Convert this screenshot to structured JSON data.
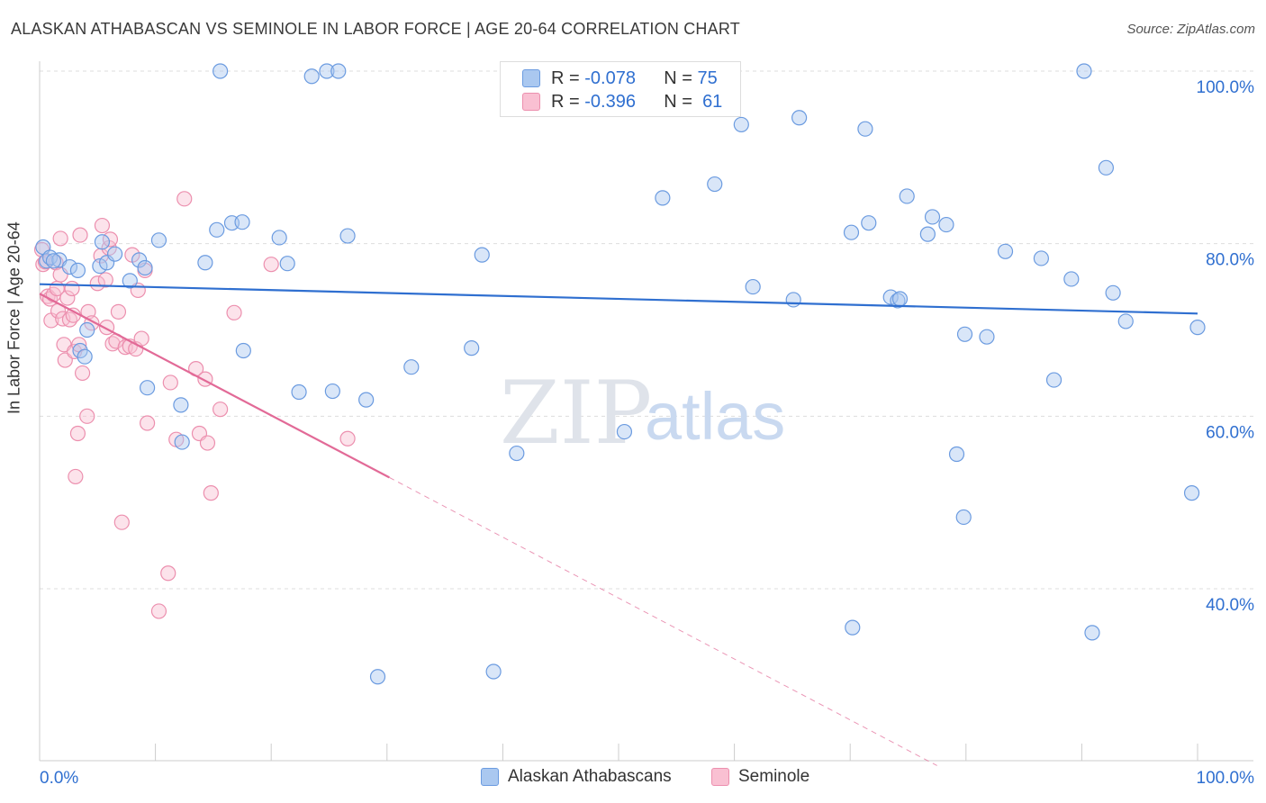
{
  "title": "ALASKAN ATHABASCAN VS SEMINOLE IN LABOR FORCE | AGE 20-64 CORRELATION CHART",
  "source": "Source: ZipAtlas.com",
  "watermark": {
    "zip": "ZIP",
    "atlas": "atlas"
  },
  "legend": {
    "rows": [
      {
        "r_label": "R =",
        "r_value": "-0.078",
        "n_label": "N =",
        "n_value": "75",
        "color": "#aac8f0",
        "border": "#6b9be0"
      },
      {
        "r_label": "R =",
        "r_value": "-0.396",
        "n_label": "N =",
        "n_value": "61",
        "color": "#f9c0d2",
        "border": "#ec8fae"
      }
    ]
  },
  "bottom_legend": {
    "series1": "Alaskan Athabascans",
    "series2": "Seminole"
  },
  "colors": {
    "blue": "#2f6fd0",
    "pink": "#e26a97",
    "grid": "#dddddd",
    "axis_text": "#2f6fd0"
  },
  "chart_data": {
    "type": "scatter",
    "title": "ALASKAN ATHABASCAN VS SEMINOLE IN LABOR FORCE | AGE 20-64 CORRELATION CHART",
    "xlabel": "",
    "ylabel": "In Labor Force | Age 20-64",
    "xlim": [
      0,
      100
    ],
    "ylim": [
      20,
      102
    ],
    "x_tick_labels": [
      "0.0%",
      "100.0%"
    ],
    "y_ticks": [
      40,
      60,
      80,
      100
    ],
    "y_tick_labels": [
      "40.0%",
      "60.0%",
      "80.0%",
      "100.0%"
    ],
    "grid": true,
    "legend_position": "top-center",
    "series": [
      {
        "name": "Alaskan Athabascans",
        "r": -0.078,
        "n": 75,
        "trend": {
          "x": [
            0,
            100
          ],
          "y": [
            75.3,
            71.9
          ]
        },
        "points": [
          [
            0.3,
            79.6
          ],
          [
            0.6,
            78.0
          ],
          [
            0.9,
            78.4
          ],
          [
            1.7,
            78.1
          ],
          [
            2.6,
            77.3
          ],
          [
            3.5,
            67.6
          ],
          [
            3.9,
            66.9
          ],
          [
            4.1,
            70.0
          ],
          [
            5.2,
            77.4
          ],
          [
            5.4,
            80.2
          ],
          [
            5.8,
            77.8
          ],
          [
            6.5,
            78.8
          ],
          [
            7.8,
            75.7
          ],
          [
            8.6,
            78.1
          ],
          [
            9.1,
            77.2
          ],
          [
            9.3,
            63.3
          ],
          [
            10.3,
            80.4
          ],
          [
            12.2,
            61.3
          ],
          [
            12.3,
            57.0
          ],
          [
            14.3,
            77.8
          ],
          [
            15.3,
            81.6
          ],
          [
            15.6,
            100.0
          ],
          [
            16.6,
            82.4
          ],
          [
            17.5,
            82.5
          ],
          [
            17.6,
            67.6
          ],
          [
            20.7,
            80.7
          ],
          [
            21.4,
            77.7
          ],
          [
            22.4,
            62.8
          ],
          [
            23.5,
            99.4
          ],
          [
            24.8,
            100.0
          ],
          [
            25.3,
            62.9
          ],
          [
            25.8,
            100.0
          ],
          [
            26.6,
            80.9
          ],
          [
            28.2,
            61.9
          ],
          [
            29.2,
            29.8
          ],
          [
            32.1,
            65.7
          ],
          [
            37.3,
            67.9
          ],
          [
            38.2,
            78.7
          ],
          [
            39.2,
            30.4
          ],
          [
            41.2,
            55.7
          ],
          [
            50.5,
            58.2
          ],
          [
            53.8,
            85.3
          ],
          [
            58.3,
            86.9
          ],
          [
            60.6,
            93.8
          ],
          [
            61.6,
            75.0
          ],
          [
            65.1,
            73.5
          ],
          [
            65.6,
            94.6
          ],
          [
            70.1,
            81.3
          ],
          [
            70.2,
            35.5
          ],
          [
            71.3,
            93.3
          ],
          [
            71.6,
            82.4
          ],
          [
            73.5,
            73.8
          ],
          [
            74.1,
            73.4
          ],
          [
            74.3,
            73.6
          ],
          [
            74.9,
            85.5
          ],
          [
            76.7,
            81.1
          ],
          [
            77.1,
            83.1
          ],
          [
            78.3,
            82.2
          ],
          [
            79.2,
            55.6
          ],
          [
            79.8,
            48.3
          ],
          [
            79.9,
            69.5
          ],
          [
            81.8,
            69.2
          ],
          [
            83.4,
            79.1
          ],
          [
            86.5,
            78.3
          ],
          [
            87.6,
            64.2
          ],
          [
            89.1,
            75.9
          ],
          [
            90.2,
            100.0
          ],
          [
            90.9,
            34.9
          ],
          [
            92.1,
            88.8
          ],
          [
            92.7,
            74.3
          ],
          [
            93.8,
            71.0
          ],
          [
            99.5,
            51.1
          ],
          [
            100.0,
            70.3
          ],
          [
            1.2,
            78.0
          ],
          [
            3.3,
            76.9
          ]
        ]
      },
      {
        "name": "Seminole",
        "r": -0.396,
        "n": 61,
        "trend": {
          "x": [
            0,
            30.2
          ],
          "y": [
            74.2,
            52.9
          ]
        },
        "trend_ext": {
          "x": [
            30.2,
            77.5
          ],
          "y": [
            52.9,
            19.5
          ]
        },
        "points": [
          [
            0.2,
            79.3
          ],
          [
            0.3,
            77.6
          ],
          [
            0.5,
            77.9
          ],
          [
            0.7,
            73.9
          ],
          [
            0.9,
            73.6
          ],
          [
            1.0,
            71.1
          ],
          [
            1.2,
            74.1
          ],
          [
            1.4,
            77.8
          ],
          [
            1.5,
            74.8
          ],
          [
            1.6,
            72.2
          ],
          [
            1.8,
            76.4
          ],
          [
            1.8,
            80.6
          ],
          [
            2.0,
            71.3
          ],
          [
            2.1,
            68.3
          ],
          [
            2.2,
            66.5
          ],
          [
            2.4,
            73.7
          ],
          [
            2.6,
            71.2
          ],
          [
            2.8,
            74.8
          ],
          [
            2.9,
            71.7
          ],
          [
            3.0,
            67.5
          ],
          [
            3.1,
            53.0
          ],
          [
            3.3,
            58.0
          ],
          [
            3.4,
            68.3
          ],
          [
            3.5,
            81.0
          ],
          [
            3.7,
            65.0
          ],
          [
            4.1,
            60.0
          ],
          [
            4.2,
            72.1
          ],
          [
            4.5,
            70.8
          ],
          [
            5.0,
            75.4
          ],
          [
            5.3,
            78.6
          ],
          [
            5.4,
            82.1
          ],
          [
            5.7,
            75.8
          ],
          [
            5.8,
            70.3
          ],
          [
            6.0,
            79.5
          ],
          [
            6.1,
            80.5
          ],
          [
            6.3,
            68.4
          ],
          [
            6.6,
            68.7
          ],
          [
            6.8,
            72.1
          ],
          [
            7.1,
            47.7
          ],
          [
            7.4,
            68.0
          ],
          [
            7.8,
            68.1
          ],
          [
            8.0,
            78.7
          ],
          [
            8.3,
            67.8
          ],
          [
            8.5,
            74.6
          ],
          [
            8.8,
            69.0
          ],
          [
            9.1,
            76.9
          ],
          [
            9.3,
            59.2
          ],
          [
            10.3,
            37.4
          ],
          [
            11.1,
            41.8
          ],
          [
            11.3,
            63.9
          ],
          [
            11.8,
            57.3
          ],
          [
            12.5,
            85.2
          ],
          [
            13.5,
            65.5
          ],
          [
            13.8,
            58.0
          ],
          [
            14.3,
            64.3
          ],
          [
            14.5,
            56.9
          ],
          [
            14.8,
            51.1
          ],
          [
            15.6,
            60.8
          ],
          [
            16.8,
            72.0
          ],
          [
            20.0,
            77.6
          ],
          [
            26.6,
            57.4
          ]
        ]
      }
    ]
  }
}
